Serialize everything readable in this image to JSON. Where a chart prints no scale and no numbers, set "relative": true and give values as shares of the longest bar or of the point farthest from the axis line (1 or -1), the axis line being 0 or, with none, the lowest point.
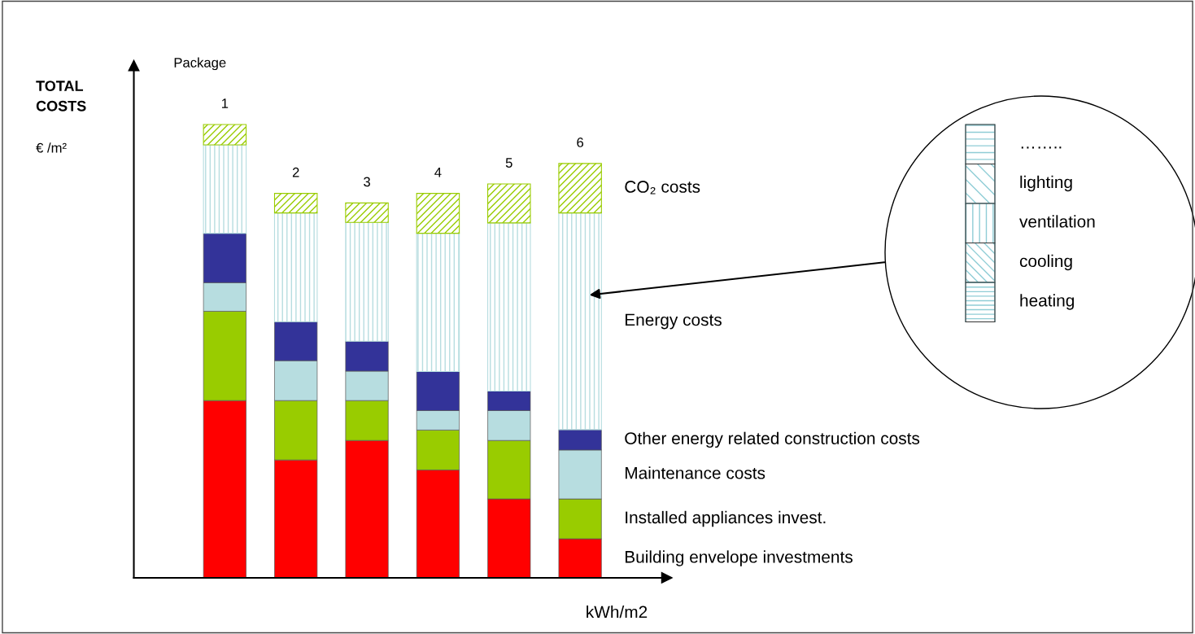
{
  "chart_data": {
    "type": "bar",
    "stacked": true,
    "relative": true,
    "legend": false,
    "ylabel": "TOTAL COSTS",
    "xlabel": "kWh/m2",
    "categories": [
      "1",
      "2",
      "3",
      "4",
      "5",
      "6"
    ],
    "annotations": [
      "Package",
      "€ /m²",
      "……..",
      "lighting",
      "ventilation",
      "cooling",
      "heating"
    ],
    "series": [
      {
        "name": "Building envelope investments",
        "color": "#ff0000",
        "values": [
          0.391,
          0.26,
          0.303,
          0.238,
          0.174,
          0.086
        ]
      },
      {
        "name": "Installed appliances invest.",
        "color": "#99cc00",
        "values": [
          0.197,
          0.131,
          0.088,
          0.088,
          0.129,
          0.088
        ]
      },
      {
        "name": "Maintenance costs",
        "color": "#b7dde0",
        "values": [
          0.063,
          0.088,
          0.065,
          0.043,
          0.066,
          0.108
        ]
      },
      {
        "name": "Other energy related construction costs",
        "color": "#333399",
        "values": [
          0.109,
          0.086,
          0.066,
          0.086,
          0.043,
          0.045
        ]
      },
      {
        "name": "Energy costs",
        "color": "#b7dde0",
        "values": [
          0.195,
          0.24,
          0.262,
          0.305,
          0.371,
          0.478
        ]
      },
      {
        "name": "CO₂ costs",
        "color": "#99cc00",
        "values": [
          0.045,
          0.043,
          0.043,
          0.088,
          0.086,
          0.109
        ]
      }
    ]
  }
}
